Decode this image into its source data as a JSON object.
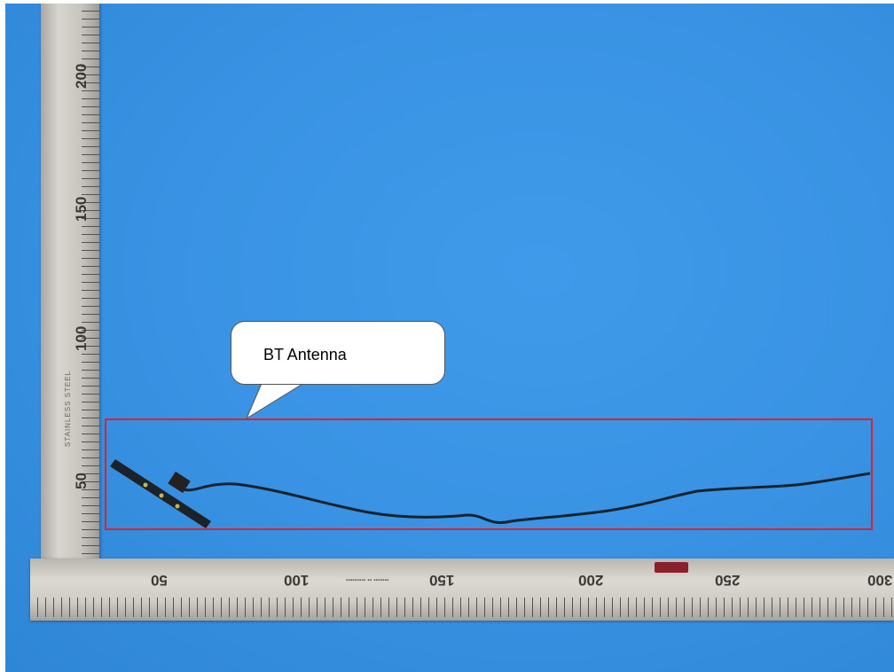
{
  "callout": {
    "label": "BT Antenna"
  },
  "ruler_vertical": {
    "numbers": [
      "200",
      "150",
      "100",
      "50"
    ],
    "brand_text": "STAINLESS STEEL"
  },
  "ruler_horizontal": {
    "numbers": [
      "50",
      "100",
      "150",
      "200",
      "250",
      "300"
    ]
  },
  "colors": {
    "background": "#3a93e4",
    "highlight_box": "#e0202a",
    "cable": "#15232c"
  }
}
